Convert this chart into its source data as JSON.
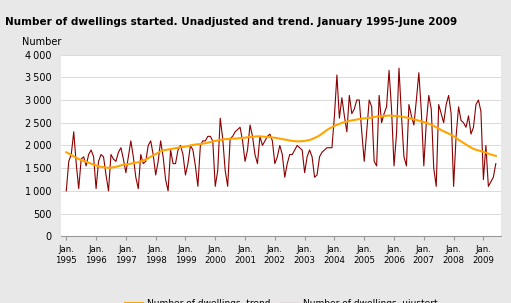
{
  "title": "Number of dwellings started. Unadjusted and trend. January 1995-June 2009",
  "ylabel": "Number",
  "header_bg_color": "#d9d9d9",
  "plot_bg_color": "#ffffff",
  "fig_bg_color": "#e8e8e8",
  "ylim": [
    0,
    4000
  ],
  "yticks": [
    0,
    500,
    1000,
    1500,
    2000,
    2500,
    3000,
    3500,
    4000
  ],
  "trend_color": "#FFA500",
  "unadjusted_color": "#8B0000",
  "trend_label": "Number of dwellings, trend",
  "unadjusted_label": "Number of dwellings, ujustert",
  "unadjusted": [
    1000,
    1650,
    1800,
    2300,
    1600,
    1050,
    1700,
    1750,
    1550,
    1800,
    1900,
    1750,
    1050,
    1650,
    1800,
    1750,
    1350,
    1000,
    1800,
    1700,
    1650,
    1850,
    1950,
    1700,
    1400,
    1750,
    2100,
    1750,
    1300,
    1050,
    1800,
    1600,
    1650,
    2000,
    2100,
    1800,
    1350,
    1650,
    2100,
    1750,
    1250,
    1000,
    1900,
    1600,
    1600,
    1900,
    2000,
    1800,
    1350,
    1600,
    2000,
    1900,
    1550,
    1100,
    2000,
    2100,
    2100,
    2200,
    2200,
    2100,
    1100,
    1450,
    2600,
    2150,
    1450,
    1100,
    2150,
    2200,
    2300,
    2350,
    2400,
    2100,
    1650,
    1900,
    2450,
    2200,
    1800,
    1600,
    2200,
    2000,
    2100,
    2200,
    2250,
    2100,
    1600,
    1750,
    2000,
    1800,
    1300,
    1600,
    1800,
    1800,
    1900,
    2000,
    1950,
    1900,
    1400,
    1750,
    1900,
    1750,
    1300,
    1350,
    1750,
    1850,
    1900,
    1950,
    1950,
    1950,
    2650,
    3550,
    2600,
    3050,
    2650,
    2300,
    3100,
    2700,
    2800,
    3000,
    3000,
    2300,
    1650,
    2300,
    3000,
    2850,
    1650,
    1550,
    3100,
    2500,
    2700,
    2850,
    3650,
    2800,
    1550,
    2250,
    3700,
    2650,
    1750,
    1550,
    2900,
    2650,
    2450,
    3000,
    3600,
    2750,
    1550,
    2500,
    3100,
    2800,
    1500,
    1100,
    2900,
    2700,
    2500,
    2900,
    3100,
    2700,
    1100,
    2200,
    2850,
    2550,
    2500,
    2400,
    2650,
    2250,
    2400,
    2900,
    3000,
    2750,
    1250,
    2000,
    1100,
    1200,
    1300,
    1600
  ],
  "trend": [
    1850,
    1820,
    1790,
    1760,
    1730,
    1700,
    1680,
    1660,
    1640,
    1620,
    1600,
    1580,
    1560,
    1540,
    1530,
    1520,
    1510,
    1510,
    1510,
    1520,
    1530,
    1545,
    1560,
    1575,
    1580,
    1590,
    1600,
    1610,
    1620,
    1630,
    1650,
    1670,
    1690,
    1720,
    1750,
    1780,
    1810,
    1840,
    1870,
    1890,
    1900,
    1910,
    1920,
    1930,
    1940,
    1950,
    1960,
    1965,
    1975,
    1985,
    2000,
    2010,
    2020,
    2025,
    2030,
    2040,
    2050,
    2060,
    2075,
    2090,
    2100,
    2110,
    2120,
    2130,
    2140,
    2140,
    2145,
    2150,
    2150,
    2155,
    2160,
    2165,
    2170,
    2180,
    2185,
    2190,
    2195,
    2200,
    2200,
    2195,
    2190,
    2185,
    2180,
    2175,
    2170,
    2160,
    2150,
    2140,
    2130,
    2120,
    2110,
    2100,
    2095,
    2090,
    2090,
    2095,
    2100,
    2110,
    2120,
    2140,
    2165,
    2190,
    2220,
    2260,
    2300,
    2340,
    2375,
    2400,
    2430,
    2455,
    2475,
    2495,
    2510,
    2525,
    2540,
    2550,
    2560,
    2570,
    2580,
    2590,
    2595,
    2600,
    2605,
    2615,
    2625,
    2635,
    2640,
    2645,
    2650,
    2655,
    2658,
    2655,
    2650,
    2645,
    2640,
    2635,
    2625,
    2615,
    2600,
    2590,
    2575,
    2560,
    2545,
    2530,
    2515,
    2500,
    2480,
    2455,
    2430,
    2400,
    2370,
    2340,
    2310,
    2285,
    2260,
    2235,
    2200,
    2165,
    2125,
    2090,
    2055,
    2020,
    1985,
    1955,
    1925,
    1905,
    1890,
    1875,
    1860,
    1840,
    1820,
    1800,
    1785,
    1770
  ],
  "x_tick_positions": [
    0,
    12,
    24,
    36,
    48,
    60,
    72,
    84,
    96,
    108,
    120,
    132,
    144,
    156,
    168
  ],
  "x_tick_labels": [
    "Jan.\n1995",
    "Jan.\n1996",
    "Jan.\n1997",
    "Jan.\n1998",
    "Jan.\n1999",
    "Jan.\n2000",
    "Jan.\n2001",
    "Jan.\n2002",
    "Jan.\n2003",
    "Jan.\n2004",
    "Jan.\n2005",
    "Jan.\n2006",
    "Jan.\n2007",
    "Jan.\n2008",
    "Jan.\n2009"
  ]
}
